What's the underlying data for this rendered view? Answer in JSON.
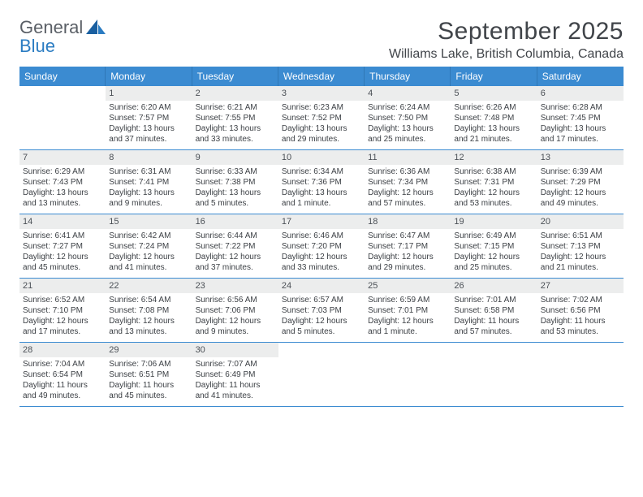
{
  "logo": {
    "line1": "General",
    "line2": "Blue"
  },
  "title": "September 2025",
  "location": "Williams Lake, British Columbia, Canada",
  "colors": {
    "header_bg": "#3b8bd1",
    "row_divider": "#3b8bd1",
    "daynum_bg": "#eceded",
    "text": "#3b3f44",
    "logo_gray": "#5a5f66",
    "logo_blue": "#2b7cc2"
  },
  "dow": [
    "Sunday",
    "Monday",
    "Tuesday",
    "Wednesday",
    "Thursday",
    "Friday",
    "Saturday"
  ],
  "weeks": [
    [
      null,
      {
        "n": "1",
        "sr": "6:20 AM",
        "ss": "7:57 PM",
        "dl": "13 hours and 37 minutes."
      },
      {
        "n": "2",
        "sr": "6:21 AM",
        "ss": "7:55 PM",
        "dl": "13 hours and 33 minutes."
      },
      {
        "n": "3",
        "sr": "6:23 AM",
        "ss": "7:52 PM",
        "dl": "13 hours and 29 minutes."
      },
      {
        "n": "4",
        "sr": "6:24 AM",
        "ss": "7:50 PM",
        "dl": "13 hours and 25 minutes."
      },
      {
        "n": "5",
        "sr": "6:26 AM",
        "ss": "7:48 PM",
        "dl": "13 hours and 21 minutes."
      },
      {
        "n": "6",
        "sr": "6:28 AM",
        "ss": "7:45 PM",
        "dl": "13 hours and 17 minutes."
      }
    ],
    [
      {
        "n": "7",
        "sr": "6:29 AM",
        "ss": "7:43 PM",
        "dl": "13 hours and 13 minutes."
      },
      {
        "n": "8",
        "sr": "6:31 AM",
        "ss": "7:41 PM",
        "dl": "13 hours and 9 minutes."
      },
      {
        "n": "9",
        "sr": "6:33 AM",
        "ss": "7:38 PM",
        "dl": "13 hours and 5 minutes."
      },
      {
        "n": "10",
        "sr": "6:34 AM",
        "ss": "7:36 PM",
        "dl": "13 hours and 1 minute."
      },
      {
        "n": "11",
        "sr": "6:36 AM",
        "ss": "7:34 PM",
        "dl": "12 hours and 57 minutes."
      },
      {
        "n": "12",
        "sr": "6:38 AM",
        "ss": "7:31 PM",
        "dl": "12 hours and 53 minutes."
      },
      {
        "n": "13",
        "sr": "6:39 AM",
        "ss": "7:29 PM",
        "dl": "12 hours and 49 minutes."
      }
    ],
    [
      {
        "n": "14",
        "sr": "6:41 AM",
        "ss": "7:27 PM",
        "dl": "12 hours and 45 minutes."
      },
      {
        "n": "15",
        "sr": "6:42 AM",
        "ss": "7:24 PM",
        "dl": "12 hours and 41 minutes."
      },
      {
        "n": "16",
        "sr": "6:44 AM",
        "ss": "7:22 PM",
        "dl": "12 hours and 37 minutes."
      },
      {
        "n": "17",
        "sr": "6:46 AM",
        "ss": "7:20 PM",
        "dl": "12 hours and 33 minutes."
      },
      {
        "n": "18",
        "sr": "6:47 AM",
        "ss": "7:17 PM",
        "dl": "12 hours and 29 minutes."
      },
      {
        "n": "19",
        "sr": "6:49 AM",
        "ss": "7:15 PM",
        "dl": "12 hours and 25 minutes."
      },
      {
        "n": "20",
        "sr": "6:51 AM",
        "ss": "7:13 PM",
        "dl": "12 hours and 21 minutes."
      }
    ],
    [
      {
        "n": "21",
        "sr": "6:52 AM",
        "ss": "7:10 PM",
        "dl": "12 hours and 17 minutes."
      },
      {
        "n": "22",
        "sr": "6:54 AM",
        "ss": "7:08 PM",
        "dl": "12 hours and 13 minutes."
      },
      {
        "n": "23",
        "sr": "6:56 AM",
        "ss": "7:06 PM",
        "dl": "12 hours and 9 minutes."
      },
      {
        "n": "24",
        "sr": "6:57 AM",
        "ss": "7:03 PM",
        "dl": "12 hours and 5 minutes."
      },
      {
        "n": "25",
        "sr": "6:59 AM",
        "ss": "7:01 PM",
        "dl": "12 hours and 1 minute."
      },
      {
        "n": "26",
        "sr": "7:01 AM",
        "ss": "6:58 PM",
        "dl": "11 hours and 57 minutes."
      },
      {
        "n": "27",
        "sr": "7:02 AM",
        "ss": "6:56 PM",
        "dl": "11 hours and 53 minutes."
      }
    ],
    [
      {
        "n": "28",
        "sr": "7:04 AM",
        "ss": "6:54 PM",
        "dl": "11 hours and 49 minutes."
      },
      {
        "n": "29",
        "sr": "7:06 AM",
        "ss": "6:51 PM",
        "dl": "11 hours and 45 minutes."
      },
      {
        "n": "30",
        "sr": "7:07 AM",
        "ss": "6:49 PM",
        "dl": "11 hours and 41 minutes."
      },
      null,
      null,
      null,
      null
    ]
  ],
  "labels": {
    "sunrise": "Sunrise:",
    "sunset": "Sunset:",
    "daylight": "Daylight:"
  }
}
